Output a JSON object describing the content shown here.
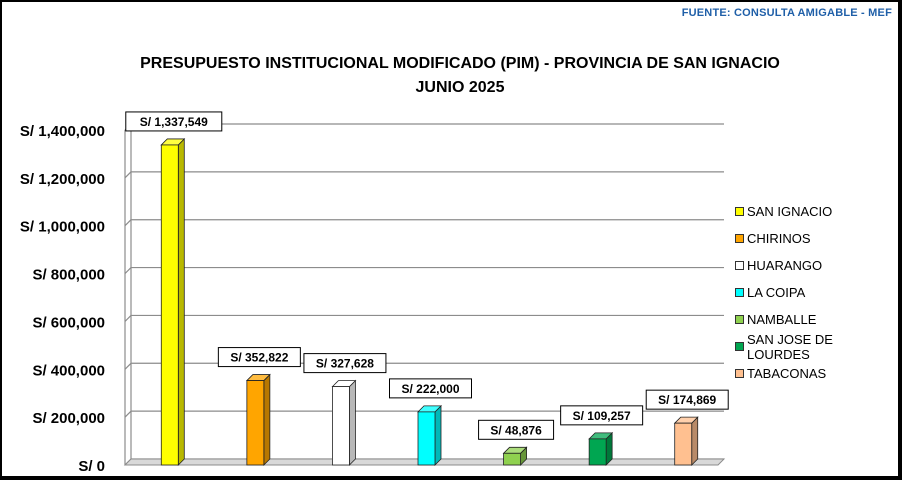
{
  "source": "FUENTE:  CONSULTA AMIGABLE - MEF",
  "chart_data": {
    "type": "bar",
    "title": "PRESUPUESTO INSTITUCIONAL MODIFICADO (PIM) - PROVINCIA DE SAN IGNACIO",
    "subtitle": "JUNIO 2025",
    "categories": [
      "SAN IGNACIO",
      "CHIRINOS",
      "HUARANGO",
      "LA COIPA",
      "NAMBALLE",
      "SAN JOSE DE LOURDES",
      "TABACONAS"
    ],
    "values": [
      1337549,
      352822,
      327628,
      222000,
      48876,
      109257,
      174869
    ],
    "data_labels": [
      "S/ 1,337,549",
      "S/ 352,822",
      "S/ 327,628",
      "S/ 222,000",
      "S/ 48,876",
      "S/ 109,257",
      "S/ 174,869"
    ],
    "colors": [
      "#ffff00",
      "#ffa500",
      "#ffffff",
      "#00ffff",
      "#8fd14f",
      "#00a651",
      "#ffc090"
    ],
    "ylim": [
      0,
      1400000
    ],
    "yticks": [
      0,
      200000,
      400000,
      600000,
      800000,
      1000000,
      1200000,
      1400000
    ],
    "ytick_labels": [
      "S/ 0",
      "S/ 200,000",
      "S/ 400,000",
      "S/ 600,000",
      "S/ 800,000",
      "S/ 1,000,000",
      "S/ 1,200,000",
      "S/ 1,400,000"
    ],
    "grid": true,
    "legend_position": "right"
  }
}
